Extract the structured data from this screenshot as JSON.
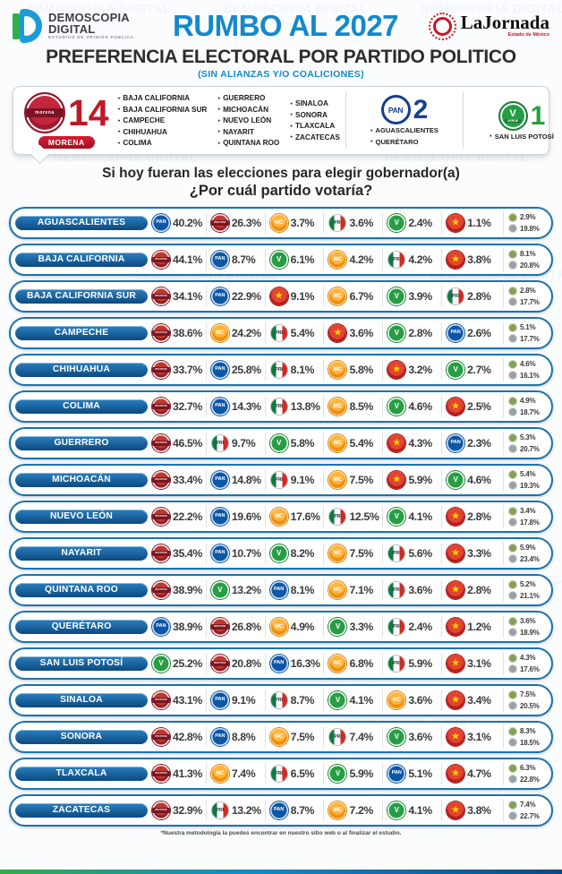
{
  "watermark": "DEMOSCOPIA DIGITAL",
  "header": {
    "brand": {
      "line1": "DEMOSCOPIA",
      "line2": "DIGITAL",
      "tagline": "ESTUDIOS DE OPINIÓN PÚBLICA"
    },
    "title": "RUMBO AL 2027",
    "partner": {
      "name": "LaJornada",
      "subtitle": "Estado de México"
    },
    "heading": "PREFERENCIA ELECTORAL POR PARTIDO POLITICO",
    "subheading": "(SIN ALIANZAS Y/O COALICIONES)"
  },
  "summary": {
    "groups": [
      {
        "party": "morena",
        "label": "MORENA",
        "count": "14",
        "state_columns": [
          [
            "BAJA CALIFORNIA",
            "BAJA CALIFORNIA SUR",
            "CAMPECHE",
            "CHIHUAHUA",
            "COLIMA"
          ],
          [
            "GUERRERO",
            "MICHOACÁN",
            "NUEVO LEÓN",
            "NAYARIT",
            "QUINTANA ROO"
          ],
          [
            "SINALOA",
            "SONORA",
            "TLAXCALA",
            "ZACATECAS"
          ]
        ]
      },
      {
        "party": "pan",
        "label": "PAN",
        "count": "2",
        "state_columns": [
          [
            "AGUASCALIENTES",
            "QUERÉTARO"
          ]
        ]
      },
      {
        "party": "verde",
        "label": "VERDE",
        "count": "1",
        "state_columns": [
          [
            "SAN LUIS POTOSÍ"
          ]
        ]
      }
    ]
  },
  "question": {
    "line1": "Si hoy fueran las elecciones para elegir gobernador(a)",
    "line2": "¿Por cuál partido votaría?"
  },
  "parties": {
    "morena": {
      "name": "MORENA",
      "color": "#9E1B2F"
    },
    "pan": {
      "name": "PAN",
      "color": "#0D57A7"
    },
    "mc": {
      "name": "MC",
      "color": "#EF8F0E"
    },
    "pri": {
      "name": "PRI",
      "color": "#0C7A3E"
    },
    "verde": {
      "name": "VERDE",
      "color": "#279E43"
    },
    "pt": {
      "name": "PT",
      "color": "#B71D1D"
    },
    "otro": {
      "name": "OTRO",
      "color": "#86A05A"
    },
    "ninguno": {
      "name": "NINGUNO",
      "color": "#9AA1A7"
    }
  },
  "chart_data": {
    "type": "table",
    "title": "PREFERENCIA ELECTORAL POR PARTIDO POLITICO",
    "subtitle": "(SIN ALIANZAS Y/O COALICIONES)",
    "question": "Si hoy fueran las elecciones para elegir gobernador(a) ¿Por cuál partido votaría?",
    "unit": "percent",
    "rows": [
      {
        "state": "AGUASCALIENTES",
        "results": [
          [
            "pan",
            40.2
          ],
          [
            "morena",
            26.3
          ],
          [
            "mc",
            3.7
          ],
          [
            "pri",
            3.6
          ],
          [
            "verde",
            2.4
          ],
          [
            "pt",
            1.1
          ]
        ],
        "otro": 2.9,
        "ninguno": 19.8
      },
      {
        "state": "BAJA CALIFORNIA",
        "results": [
          [
            "morena",
            44.1
          ],
          [
            "pan",
            8.7
          ],
          [
            "verde",
            6.1
          ],
          [
            "mc",
            4.2
          ],
          [
            "pri",
            4.2
          ],
          [
            "pt",
            3.8
          ]
        ],
        "otro": 8.1,
        "ninguno": 20.8
      },
      {
        "state": "BAJA CALIFORNIA SUR",
        "results": [
          [
            "morena",
            34.1
          ],
          [
            "pan",
            22.9
          ],
          [
            "pt",
            9.1
          ],
          [
            "mc",
            6.7
          ],
          [
            "verde",
            3.9
          ],
          [
            "pri",
            2.8
          ]
        ],
        "otro": 2.8,
        "ninguno": 17.7
      },
      {
        "state": "CAMPECHE",
        "results": [
          [
            "morena",
            38.6
          ],
          [
            "mc",
            24.2
          ],
          [
            "pri",
            5.4
          ],
          [
            "pt",
            3.6
          ],
          [
            "verde",
            2.8
          ],
          [
            "pan",
            2.6
          ]
        ],
        "otro": 5.1,
        "ninguno": 17.7
      },
      {
        "state": "CHIHUAHUA",
        "results": [
          [
            "morena",
            33.7
          ],
          [
            "pan",
            25.8
          ],
          [
            "pri",
            8.1
          ],
          [
            "mc",
            5.8
          ],
          [
            "pt",
            3.2
          ],
          [
            "verde",
            2.7
          ]
        ],
        "otro": 4.6,
        "ninguno": 16.1
      },
      {
        "state": "COLIMA",
        "results": [
          [
            "morena",
            32.7
          ],
          [
            "pan",
            14.3
          ],
          [
            "pri",
            13.8
          ],
          [
            "mc",
            8.5
          ],
          [
            "verde",
            4.6
          ],
          [
            "pt",
            2.5
          ]
        ],
        "otro": 4.9,
        "ninguno": 18.7
      },
      {
        "state": "GUERRERO",
        "results": [
          [
            "morena",
            46.5
          ],
          [
            "pri",
            9.7
          ],
          [
            "verde",
            5.8
          ],
          [
            "mc",
            5.4
          ],
          [
            "pt",
            4.3
          ],
          [
            "pan",
            2.3
          ]
        ],
        "otro": 5.3,
        "ninguno": 20.7
      },
      {
        "state": "MICHOACÁN",
        "results": [
          [
            "morena",
            33.4
          ],
          [
            "pan",
            14.8
          ],
          [
            "pri",
            9.1
          ],
          [
            "mc",
            7.5
          ],
          [
            "pt",
            5.9
          ],
          [
            "verde",
            4.6
          ]
        ],
        "otro": 5.4,
        "ninguno": 19.3
      },
      {
        "state": "NUEVO LEÓN",
        "results": [
          [
            "morena",
            22.2
          ],
          [
            "pan",
            19.6
          ],
          [
            "mc",
            17.6
          ],
          [
            "pri",
            12.5
          ],
          [
            "verde",
            4.1
          ],
          [
            "pt",
            2.8
          ]
        ],
        "otro": 3.4,
        "ninguno": 17.8
      },
      {
        "state": "NAYARIT",
        "results": [
          [
            "morena",
            35.4
          ],
          [
            "pan",
            10.7
          ],
          [
            "verde",
            8.2
          ],
          [
            "mc",
            7.5
          ],
          [
            "pri",
            5.6
          ],
          [
            "pt",
            3.3
          ]
        ],
        "otro": 5.9,
        "ninguno": 23.4
      },
      {
        "state": "QUINTANA ROO",
        "results": [
          [
            "morena",
            38.9
          ],
          [
            "verde",
            13.2
          ],
          [
            "pan",
            8.1
          ],
          [
            "mc",
            7.1
          ],
          [
            "pri",
            3.6
          ],
          [
            "pt",
            2.8
          ]
        ],
        "otro": 5.2,
        "ninguno": 21.1
      },
      {
        "state": "QUERÉTARO",
        "results": [
          [
            "pan",
            38.9
          ],
          [
            "morena",
            26.8
          ],
          [
            "mc",
            4.9
          ],
          [
            "verde",
            3.3
          ],
          [
            "pri",
            2.4
          ],
          [
            "pt",
            1.2
          ]
        ],
        "otro": 3.6,
        "ninguno": 18.9
      },
      {
        "state": "SAN LUIS POTOSÍ",
        "results": [
          [
            "verde",
            25.2
          ],
          [
            "morena",
            20.8
          ],
          [
            "pan",
            16.3
          ],
          [
            "mc",
            6.8
          ],
          [
            "pri",
            5.9
          ],
          [
            "pt",
            3.1
          ]
        ],
        "otro": 4.3,
        "ninguno": 17.6
      },
      {
        "state": "SINALOA",
        "results": [
          [
            "morena",
            43.1
          ],
          [
            "pan",
            9.1
          ],
          [
            "pri",
            8.7
          ],
          [
            "verde",
            4.1
          ],
          [
            "mc",
            3.6
          ],
          [
            "pt",
            3.4
          ]
        ],
        "otro": 7.5,
        "ninguno": 20.5
      },
      {
        "state": "SONORA",
        "results": [
          [
            "morena",
            42.8
          ],
          [
            "pan",
            8.8
          ],
          [
            "mc",
            7.5
          ],
          [
            "pri",
            7.4
          ],
          [
            "verde",
            3.6
          ],
          [
            "pt",
            3.1
          ]
        ],
        "otro": 8.3,
        "ninguno": 18.5
      },
      {
        "state": "TLAXCALA",
        "results": [
          [
            "morena",
            41.3
          ],
          [
            "mc",
            7.4
          ],
          [
            "pri",
            6.5
          ],
          [
            "verde",
            5.9
          ],
          [
            "pan",
            5.1
          ],
          [
            "pt",
            4.7
          ]
        ],
        "otro": 6.3,
        "ninguno": 22.8
      },
      {
        "state": "ZACATECAS",
        "results": [
          [
            "morena",
            32.9
          ],
          [
            "pri",
            13.2
          ],
          [
            "pan",
            8.7
          ],
          [
            "mc",
            7.2
          ],
          [
            "verde",
            4.1
          ],
          [
            "pt",
            3.8
          ]
        ],
        "otro": 7.4,
        "ninguno": 22.7
      }
    ]
  },
  "footer": "*Nuestra metodología la puedes encontrar en nuestro sitio web o al finalizar el estudio."
}
